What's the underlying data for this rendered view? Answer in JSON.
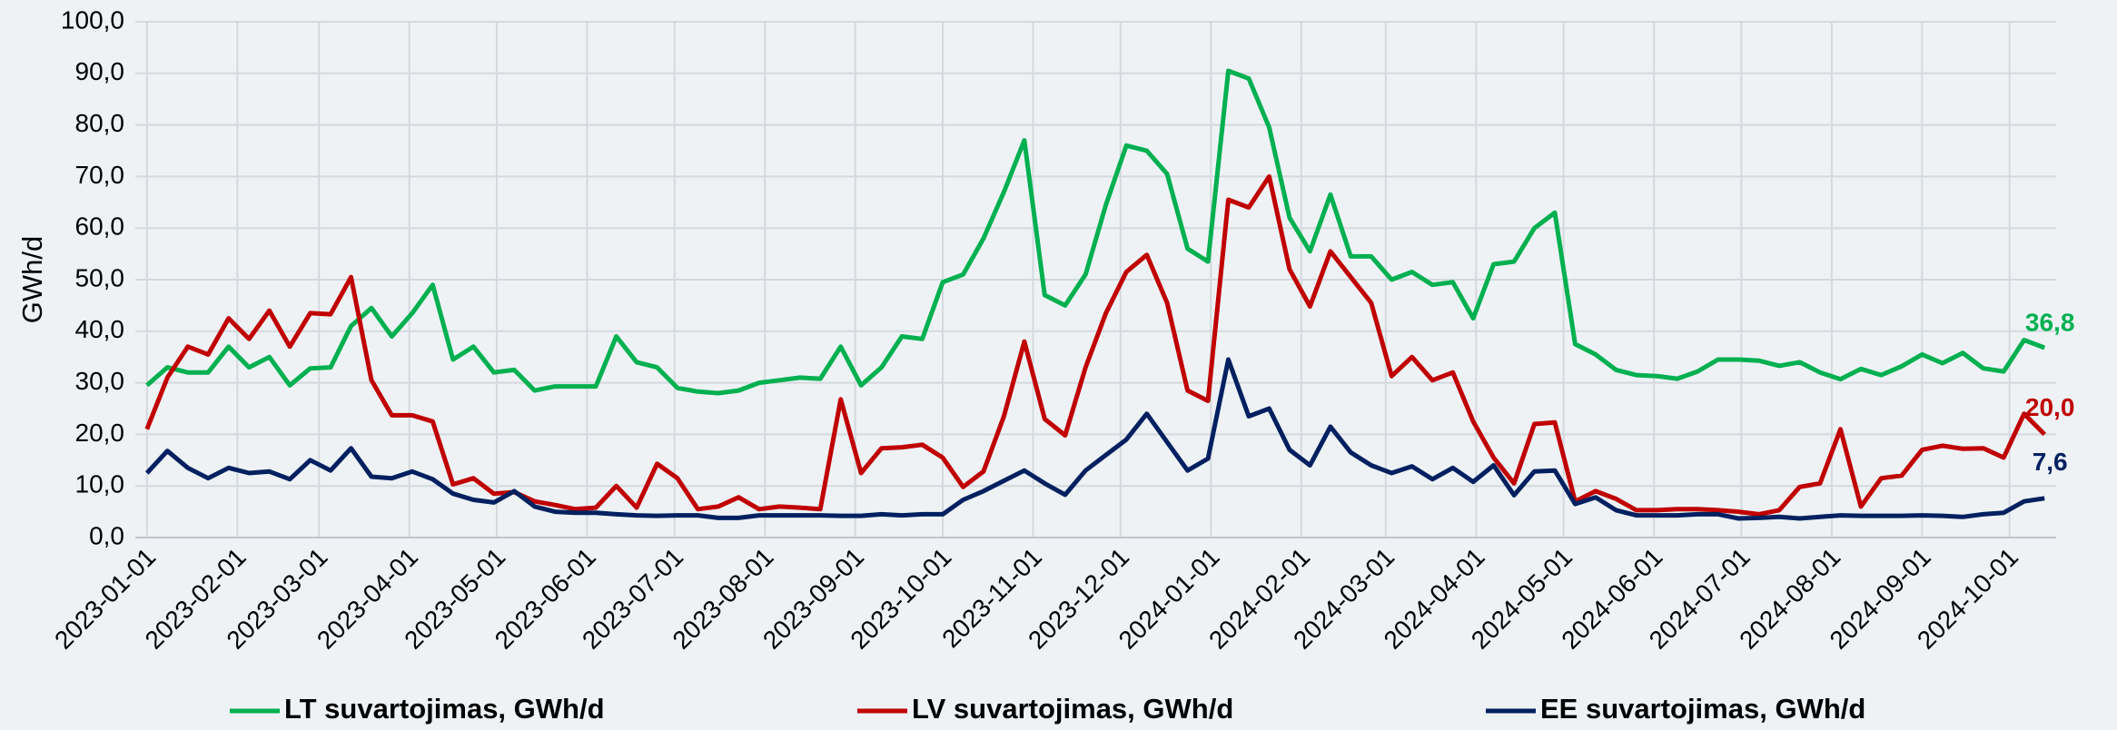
{
  "chart_data": {
    "type": "line",
    "y_label": "GWh/d",
    "x": [
      "2023-01-01",
      "2023-01-08",
      "2023-01-15",
      "2023-01-22",
      "2023-01-29",
      "2023-02-05",
      "2023-02-12",
      "2023-02-19",
      "2023-02-26",
      "2023-03-05",
      "2023-03-12",
      "2023-03-19",
      "2023-03-26",
      "2023-04-02",
      "2023-04-09",
      "2023-04-16",
      "2023-04-23",
      "2023-04-30",
      "2023-05-07",
      "2023-05-14",
      "2023-05-21",
      "2023-05-28",
      "2023-06-04",
      "2023-06-11",
      "2023-06-18",
      "2023-06-25",
      "2023-07-02",
      "2023-07-09",
      "2023-07-16",
      "2023-07-23",
      "2023-07-30",
      "2023-08-06",
      "2023-08-13",
      "2023-08-20",
      "2023-08-27",
      "2023-09-03",
      "2023-09-10",
      "2023-09-17",
      "2023-09-24",
      "2023-10-01",
      "2023-10-08",
      "2023-10-15",
      "2023-10-22",
      "2023-10-29",
      "2023-11-05",
      "2023-11-12",
      "2023-11-19",
      "2023-11-26",
      "2023-12-03",
      "2023-12-10",
      "2023-12-17",
      "2023-12-24",
      "2023-12-31",
      "2024-01-07",
      "2024-01-14",
      "2024-01-21",
      "2024-01-28",
      "2024-02-04",
      "2024-02-11",
      "2024-02-18",
      "2024-02-25",
      "2024-03-03",
      "2024-03-10",
      "2024-03-17",
      "2024-03-24",
      "2024-03-31",
      "2024-04-07",
      "2024-04-14",
      "2024-04-21",
      "2024-04-28",
      "2024-05-05",
      "2024-05-12",
      "2024-05-19",
      "2024-05-26",
      "2024-06-02",
      "2024-06-09",
      "2024-06-16",
      "2024-06-23",
      "2024-06-30",
      "2024-07-07",
      "2024-07-14",
      "2024-07-21",
      "2024-07-28",
      "2024-08-04",
      "2024-08-11",
      "2024-08-18",
      "2024-08-25",
      "2024-09-01",
      "2024-09-08",
      "2024-09-15",
      "2024-09-22",
      "2024-09-29",
      "2024-10-06",
      "2024-10-13"
    ],
    "xlim": [
      "2022-12-28",
      "2024-10-17"
    ],
    "xticks": [
      "2023-01-01",
      "2023-02-01",
      "2023-03-01",
      "2023-04-01",
      "2023-05-01",
      "2023-06-01",
      "2023-07-01",
      "2023-08-01",
      "2023-09-01",
      "2023-10-01",
      "2023-11-01",
      "2023-12-01",
      "2024-01-01",
      "2024-02-01",
      "2024-03-01",
      "2024-04-01",
      "2024-05-01",
      "2024-06-01",
      "2024-07-01",
      "2024-08-01",
      "2024-09-01",
      "2024-10-01"
    ],
    "ylim": [
      0,
      100
    ],
    "yticks": [
      {
        "value": 0,
        "label": "0,0"
      },
      {
        "value": 10,
        "label": "10,0"
      },
      {
        "value": 20,
        "label": "20,0"
      },
      {
        "value": 30,
        "label": "30,0"
      },
      {
        "value": 40,
        "label": "40,0"
      },
      {
        "value": 50,
        "label": "50,0"
      },
      {
        "value": 60,
        "label": "60,0"
      },
      {
        "value": 70,
        "label": "70,0"
      },
      {
        "value": 80,
        "label": "80,0"
      },
      {
        "value": 90,
        "label": "90,0"
      },
      {
        "value": 100,
        "label": "100,0"
      }
    ],
    "grid": true,
    "legend": "bottom",
    "series": [
      {
        "name": "LT suvartojimas, GWh/d",
        "color": "#00b050",
        "values": [
          29.5,
          33,
          32,
          32,
          37,
          33,
          35,
          29.5,
          32.8,
          33,
          41,
          44.5,
          39,
          43.5,
          49,
          34.5,
          37,
          32,
          32.5,
          28.5,
          29.3,
          29.3,
          29.3,
          39,
          34,
          33,
          29,
          28.3,
          28,
          28.5,
          30,
          30.5,
          31,
          30.8,
          37,
          29.5,
          33,
          39,
          38.5,
          49.5,
          51,
          58,
          67,
          77,
          47,
          45,
          51,
          64.5,
          76,
          75,
          70.5,
          56,
          53.5,
          90.5,
          89,
          79.5,
          62,
          55.5,
          66.5,
          54.5,
          54.5,
          50,
          51.5,
          49,
          49.5,
          42.5,
          53,
          53.5,
          60,
          63,
          37.5,
          35.5,
          32.5,
          31.5,
          31.3,
          30.8,
          32.2,
          34.5,
          34.5,
          34.3,
          33.3,
          34,
          32,
          30.7,
          32.7,
          31.5,
          33.2,
          35.5,
          33.8,
          35.8,
          32.8,
          32.2,
          38.3,
          36.8
        ],
        "value_labels": [
          null,
          null,
          null,
          null,
          null,
          null,
          null,
          null,
          null,
          null,
          null,
          null,
          null,
          null,
          null,
          null,
          null,
          null,
          null,
          null,
          null,
          null,
          null,
          null,
          null,
          null,
          null,
          null,
          null,
          null,
          null,
          null,
          null,
          null,
          null,
          null,
          null,
          null,
          null,
          null,
          null,
          null,
          null,
          null,
          null,
          null,
          null,
          null,
          null,
          null,
          null,
          null,
          null,
          null,
          null,
          null,
          null,
          null,
          null,
          null,
          null,
          null,
          null,
          null,
          null,
          null,
          null,
          null,
          null,
          null,
          null,
          null,
          null,
          null,
          null,
          null,
          null,
          null,
          null,
          null,
          null,
          null,
          null,
          null,
          null,
          null,
          null,
          null,
          null,
          null,
          null,
          null,
          null,
          "36,8"
        ]
      },
      {
        "name": "LV suvartojimas, GWh/d",
        "color": "#c00000",
        "values": [
          21,
          31,
          37,
          35.5,
          42.5,
          38.5,
          44,
          37,
          43.5,
          43.3,
          50.5,
          30.5,
          23.7,
          23.7,
          22.5,
          10.3,
          11.5,
          8.5,
          8.8,
          7,
          6.3,
          5.5,
          5.8,
          10,
          5.8,
          14.3,
          11.5,
          5.5,
          6,
          7.8,
          5.5,
          6,
          5.8,
          5.5,
          26.8,
          12.5,
          17.3,
          17.5,
          18,
          15.5,
          9.8,
          12.8,
          23.5,
          38,
          23,
          19.8,
          33,
          43.5,
          51.5,
          54.8,
          45.5,
          28.5,
          26.5,
          65.5,
          64,
          70,
          52,
          44.8,
          55.5,
          50.5,
          45.5,
          31.3,
          35,
          30.5,
          32,
          22.5,
          15.5,
          10.5,
          22,
          22.3,
          7,
          9,
          7.5,
          5.3,
          5.3,
          5.5,
          5.5,
          5.3,
          5,
          4.5,
          5.3,
          9.8,
          10.5,
          21,
          6,
          11.5,
          12,
          17,
          17.8,
          17.2,
          17.3,
          15.5,
          24,
          20
        ],
        "value_labels": [
          null,
          null,
          null,
          null,
          null,
          null,
          null,
          null,
          null,
          null,
          null,
          null,
          null,
          null,
          null,
          null,
          null,
          null,
          null,
          null,
          null,
          null,
          null,
          null,
          null,
          null,
          null,
          null,
          null,
          null,
          null,
          null,
          null,
          null,
          null,
          null,
          null,
          null,
          null,
          null,
          null,
          null,
          null,
          null,
          null,
          null,
          null,
          null,
          null,
          null,
          null,
          null,
          null,
          null,
          null,
          null,
          null,
          null,
          null,
          null,
          null,
          null,
          null,
          null,
          null,
          null,
          null,
          null,
          null,
          null,
          null,
          null,
          null,
          null,
          null,
          null,
          null,
          null,
          null,
          null,
          null,
          null,
          null,
          null,
          null,
          null,
          null,
          null,
          null,
          null,
          null,
          null,
          null,
          "20,0"
        ]
      },
      {
        "name": "EE suvartojimas, GWh/d",
        "color": "#002060",
        "values": [
          12.5,
          16.8,
          13.5,
          11.5,
          13.5,
          12.5,
          12.8,
          11.3,
          15,
          13,
          17.3,
          11.8,
          11.5,
          12.8,
          11.3,
          8.5,
          7.3,
          6.8,
          9,
          6,
          5,
          4.8,
          4.8,
          4.5,
          4.3,
          4.2,
          4.3,
          4.3,
          3.8,
          3.8,
          4.3,
          4.3,
          4.3,
          4.3,
          4.2,
          4.2,
          4.5,
          4.3,
          4.5,
          4.5,
          7.3,
          9,
          11,
          13,
          10.5,
          8.3,
          13,
          16,
          19,
          24,
          18.5,
          13,
          15.3,
          34.5,
          23.5,
          25,
          17,
          14,
          21.5,
          16.5,
          14,
          12.5,
          13.8,
          11.3,
          13.5,
          10.8,
          14,
          8.2,
          12.8,
          13,
          6.5,
          7.8,
          5.3,
          4.3,
          4.3,
          4.3,
          4.5,
          4.5,
          3.7,
          3.8,
          4,
          3.7,
          4,
          4.3,
          4.2,
          4.2,
          4.2,
          4.3,
          4.2,
          4,
          4.5,
          4.8,
          7,
          7.6
        ],
        "value_labels": [
          null,
          null,
          null,
          null,
          null,
          null,
          null,
          null,
          null,
          null,
          null,
          null,
          null,
          null,
          null,
          null,
          null,
          null,
          null,
          null,
          null,
          null,
          null,
          null,
          null,
          null,
          null,
          null,
          null,
          null,
          null,
          null,
          null,
          null,
          null,
          null,
          null,
          null,
          null,
          null,
          null,
          null,
          null,
          null,
          null,
          null,
          null,
          null,
          null,
          null,
          null,
          null,
          null,
          null,
          null,
          null,
          null,
          null,
          null,
          null,
          null,
          null,
          null,
          null,
          null,
          null,
          null,
          null,
          null,
          null,
          null,
          null,
          null,
          null,
          null,
          null,
          null,
          null,
          null,
          null,
          null,
          null,
          null,
          null,
          null,
          null,
          null,
          null,
          null,
          null,
          null,
          null,
          null,
          "7,6"
        ]
      }
    ]
  }
}
